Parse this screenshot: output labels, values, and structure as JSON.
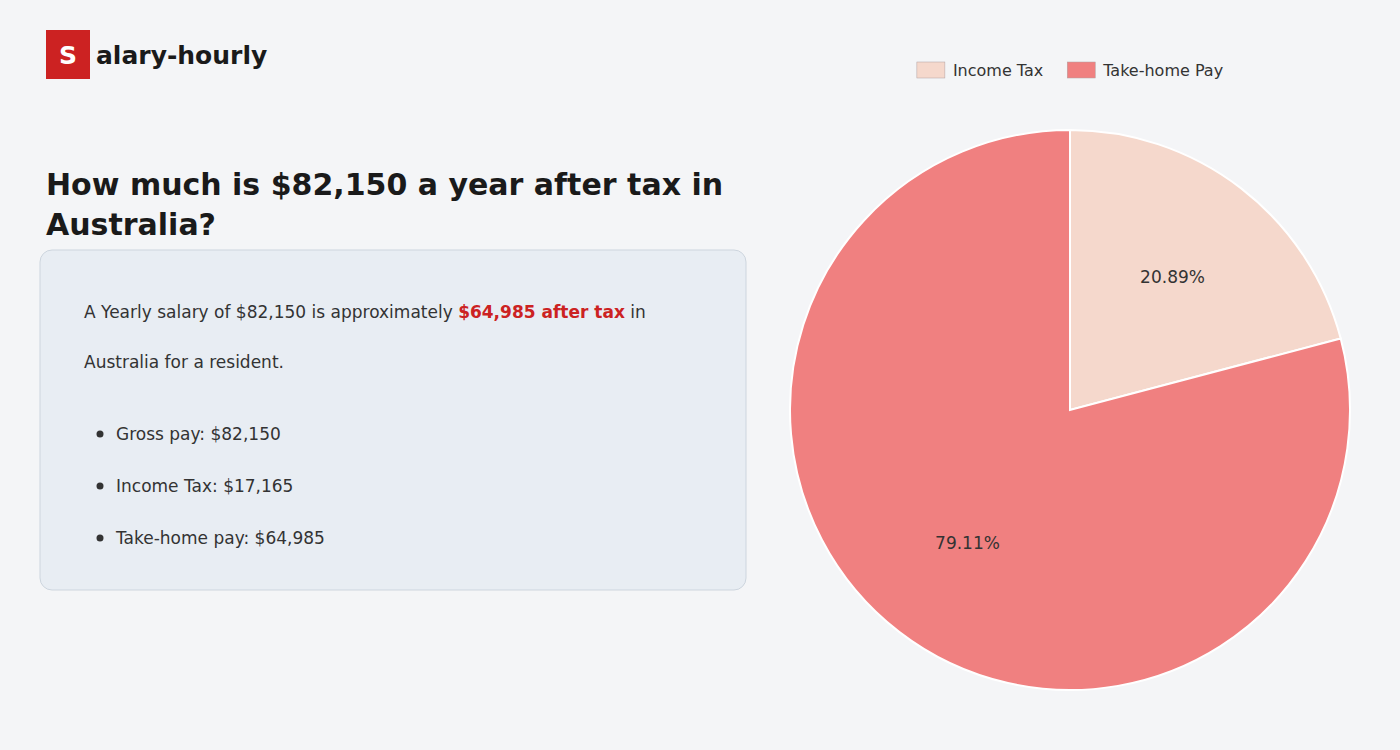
{
  "chart_data": {
    "type": "pie",
    "title": "How much is $82,150 a year after tax in\nAustralia?",
    "categories": [
      "Income Tax",
      "Take-home Pay"
    ],
    "values": [
      20.89,
      79.11
    ],
    "value_labels": [
      "20.89%",
      "79.11%"
    ],
    "colors": [
      "#f5d8cc",
      "#f08080"
    ],
    "data_labels": true,
    "legend": "top",
    "annotations": [
      "S",
      "alary-hourly",
      "A Yearly salary of $82,150 is approximately ",
      "$64,985 after tax",
      " in",
      "Australia for a resident.",
      "Gross pay: $82,150",
      "Income Tax: $17,165",
      "Take-home pay: $64,985"
    ]
  }
}
